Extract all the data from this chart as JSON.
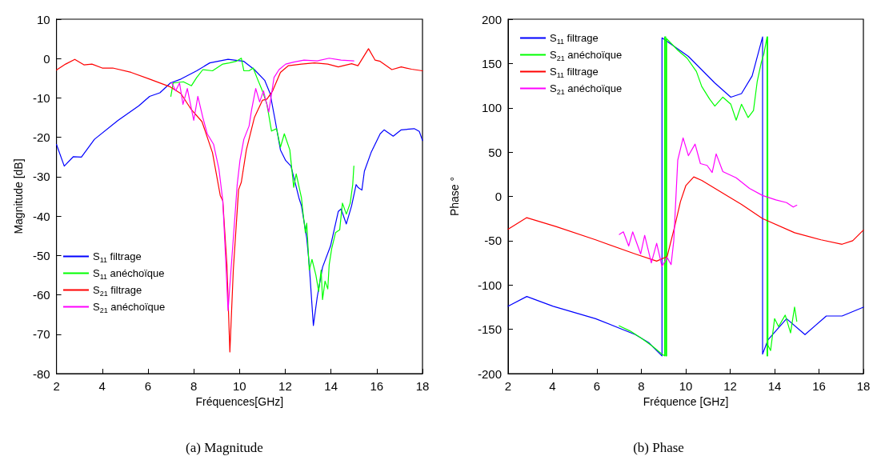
{
  "chart_data": [
    {
      "type": "line",
      "xlabel": "Fréquences[GHz]",
      "ylabel": "Magnitude [dB]",
      "annotations": [
        "(a) Magnitude"
      ],
      "xlim": [
        2,
        18
      ],
      "xticks": [
        2,
        4,
        6,
        8,
        10,
        12,
        14,
        16,
        18
      ],
      "ylim": [
        -80,
        10
      ],
      "yticks": [
        -80,
        -70,
        -60,
        -50,
        -40,
        -30,
        -20,
        -10,
        0,
        10
      ],
      "grid": false,
      "legend": "bottom left",
      "marker": "none",
      "line_style": "solid",
      "series": [
        {
          "name": "S$_{11}$ filtrage",
          "color": "#0000ff",
          "x": [
            2,
            2.34,
            2.74,
            3.09,
            3.66,
            4.69,
            5.6,
            6.07,
            6.52,
            6.98,
            7.44,
            8.13,
            8.7,
            9.5,
            10.19,
            10.65,
            11.1,
            11.34,
            11.56,
            11.79,
            12.02,
            12.25,
            12.6,
            12.71,
            12.94,
            13.05,
            13.23,
            13.4,
            13.63,
            13.98,
            14.32,
            14.44,
            14.67,
            14.9,
            15.1,
            15.18,
            15.35,
            15.46,
            15.75,
            16.15,
            16.32,
            16.72,
            17.07,
            17.64,
            17.86,
            18
          ],
          "values": [
            -21.8,
            -27.3,
            -24.9,
            -25,
            -20.5,
            -15.7,
            -12,
            -9.6,
            -8.7,
            -6.2,
            -5.2,
            -3.1,
            -1.1,
            -0.2,
            -0.7,
            -2.8,
            -5.5,
            -8.9,
            -15.7,
            -23.2,
            -25.9,
            -27.3,
            -35.4,
            -37.4,
            -45.6,
            -52.4,
            -67.8,
            -60.5,
            -53,
            -47.6,
            -38.8,
            -38.2,
            -42,
            -37.4,
            -32,
            -32.7,
            -33.4,
            -28.6,
            -23.9,
            -19.1,
            -18.1,
            -19.7,
            -18.1,
            -17.8,
            -18.5,
            -20.8
          ]
        },
        {
          "name": "S$_{11}$ anéchoïque",
          "color": "#00ff00",
          "x": [
            7,
            7.1,
            7.55,
            7.9,
            8.13,
            8.4,
            8.82,
            9.27,
            9.56,
            9.85,
            10.08,
            10.19,
            10.42,
            10.6,
            10.76,
            11,
            11.2,
            11.4,
            11.62,
            11.79,
            11.96,
            12.2,
            12.37,
            12.48,
            12.71,
            12.77,
            12.88,
            12.94,
            13.05,
            13.17,
            13.34,
            13.46,
            13.57,
            13.63,
            13.74,
            13.86,
            13.92,
            14.03,
            14.2,
            14.38,
            14.5,
            14.67,
            14.84,
            14.95,
            15
          ],
          "values": [
            -9.6,
            -6.2,
            -5.9,
            -6.9,
            -4.8,
            -2.8,
            -3.1,
            -1.4,
            -1.1,
            -0.7,
            0.1,
            -3.1,
            -3.1,
            -2.4,
            -4.8,
            -8.2,
            -11.6,
            -18.4,
            -17.8,
            -22.5,
            -19.1,
            -23.2,
            -32.7,
            -29.3,
            -35.4,
            -38.8,
            -44.2,
            -41.8,
            -53.7,
            -51,
            -55,
            -59.1,
            -53.7,
            -61.2,
            -56.5,
            -58.5,
            -52.4,
            -48.3,
            -44.2,
            -43.5,
            -36.7,
            -39.5,
            -36.7,
            -32,
            -27.3
          ]
        },
        {
          "name": "S$_{21}$ filtrage",
          "color": "#ff0000",
          "x": [
            2,
            2.4,
            2.8,
            3.2,
            3.55,
            4,
            4.46,
            5.26,
            6.07,
            6.98,
            7.44,
            7.9,
            8.36,
            8.82,
            9.16,
            9.27,
            9.45,
            9.58,
            9.73,
            9.96,
            10.08,
            10.3,
            10.65,
            11,
            11.2,
            11.45,
            11.79,
            12.14,
            12.71,
            13.28,
            13.86,
            14.32,
            14.9,
            15.18,
            15.64,
            15.93,
            16.15,
            16.66,
            17.07,
            17.52,
            18
          ],
          "values": [
            -2.9,
            -1.4,
            -0.2,
            -1.6,
            -1.4,
            -2.4,
            -2.4,
            -3.5,
            -5.2,
            -7.2,
            -8.9,
            -13,
            -16,
            -23.9,
            -34.8,
            -36.1,
            -52.4,
            -74.5,
            -53.7,
            -33.3,
            -31.4,
            -23.2,
            -15,
            -10.6,
            -10.3,
            -8.2,
            -3.5,
            -1.8,
            -1.4,
            -1.1,
            -1.4,
            -2.1,
            -1.3,
            -1.8,
            2.5,
            -0.4,
            -0.7,
            -2.8,
            -2.1,
            -2.7,
            -3.1
          ]
        },
        {
          "name": "S$_{21}$ anéchoïque",
          "color": "#ff00ff",
          "x": [
            7.04,
            7.21,
            7.38,
            7.53,
            7.72,
            8,
            8.18,
            8.4,
            8.59,
            8.87,
            9.1,
            9.27,
            9.39,
            9.5,
            9.62,
            9.8,
            9.9,
            10.02,
            10.19,
            10.42,
            10.53,
            10.71,
            10.88,
            11.05,
            11.28,
            11.51,
            11.73,
            12.02,
            12.37,
            12.82,
            13.4,
            13.92,
            14.44,
            15
          ],
          "values": [
            -6.2,
            -8.2,
            -6.2,
            -11.6,
            -7.6,
            -15.7,
            -9.6,
            -15,
            -19.1,
            -21.8,
            -28,
            -36.1,
            -50.3,
            -64,
            -54.4,
            -40.1,
            -32,
            -25.9,
            -20.5,
            -17.1,
            -13,
            -7.6,
            -11,
            -8.2,
            -13.6,
            -4.8,
            -2.8,
            -1.4,
            -0.9,
            -0.4,
            -0.6,
            0.1,
            -0.4,
            -0.6
          ]
        }
      ]
    },
    {
      "type": "line",
      "xlabel": "Fréquence [GHz]",
      "ylabel": "Phase °",
      "annotations": [
        "(b) Phase"
      ],
      "xlim": [
        2,
        18
      ],
      "xticks": [
        2,
        4,
        6,
        8,
        10,
        12,
        14,
        16,
        18
      ],
      "ylim": [
        -200,
        200
      ],
      "yticks": [
        -200,
        -150,
        -100,
        -50,
        0,
        50,
        100,
        150,
        200
      ],
      "grid": false,
      "legend": "top left",
      "marker": "none",
      "line_style": "solid",
      "series": [
        {
          "name": "S$_{11}$ filtrage",
          "color": "#0000ff",
          "x": [
            2,
            2.84,
            4.03,
            5.94,
            7.73,
            8.33,
            8.93,
            8.93,
            10.12,
            11.31,
            12.03,
            12.51,
            12.99,
            13.46,
            13.46,
            13.7,
            14.54,
            15.37,
            16.33,
            17.04,
            18
          ],
          "values": [
            -124,
            -113,
            -124,
            -138,
            -156,
            -165,
            -180,
            179,
            158,
            128,
            112,
            116,
            136,
            180,
            -178,
            -162,
            -138,
            -156,
            -135,
            -135,
            -125
          ]
        },
        {
          "name": "S$_{21}$ anéchoïque",
          "color": "#00ff00",
          "x": [
            7,
            7.5,
            8,
            8.5,
            8.93,
            9.05,
            9.05,
            9.1,
            9.1,
            9.14,
            9.14,
            9.64,
            10.06,
            10.48,
            10.72,
            11.07,
            11.31,
            11.67,
            12.03,
            12.27,
            12.51,
            12.81,
            13.05,
            13.22,
            13.4,
            13.52,
            13.64,
            13.66,
            13.66,
            13.69,
            13.69,
            13.7,
            13.82,
            14,
            14.18,
            14.48,
            14.72,
            14.9,
            15
          ],
          "values": [
            -146,
            -152,
            -160,
            -169,
            -178,
            -180,
            180,
            180,
            -180,
            -180,
            178,
            165,
            156,
            141,
            124,
            110,
            102,
            112,
            104,
            86,
            104,
            89,
            97,
            130,
            151,
            161,
            177,
            180,
            -180,
            -180,
            180,
            -168,
            -174,
            -138,
            -147,
            -134,
            -154,
            -125,
            -141
          ]
        },
        {
          "name": "S$_{11}$ filtrage",
          "color": "#ff0000",
          "x": [
            2,
            2.84,
            4.15,
            5.94,
            7.73,
            8.69,
            9.16,
            9.52,
            9.76,
            10,
            10.36,
            10.72,
            11.91,
            12.51,
            13.46,
            14.9,
            16.09,
            17.04,
            17.52,
            18
          ],
          "values": [
            -37,
            -24,
            -34,
            -49,
            -65,
            -73,
            -68,
            -32,
            -6,
            12,
            22,
            18,
            0,
            -9,
            -25,
            -41,
            -49,
            -54,
            -50,
            -38
          ]
        },
        {
          "name": "S$_{21}$ anéchoïque",
          "color": "#ff00ff",
          "x": [
            7.01,
            7.19,
            7.43,
            7.61,
            7.97,
            8.15,
            8.45,
            8.69,
            8.93,
            9.16,
            9.34,
            9.46,
            9.64,
            9.88,
            10.12,
            10.42,
            10.66,
            10.96,
            11.19,
            11.37,
            11.67,
            12.27,
            12.87,
            13.46,
            14.06,
            14.54,
            14.84,
            15
          ],
          "values": [
            -43,
            -40,
            -56,
            -40,
            -65,
            -44,
            -75,
            -53,
            -79,
            -69,
            -77,
            -50,
            41,
            66,
            46,
            59,
            37,
            35,
            27,
            48,
            28,
            21,
            9,
            1,
            -4,
            -7,
            -12,
            -10
          ]
        }
      ]
    }
  ]
}
